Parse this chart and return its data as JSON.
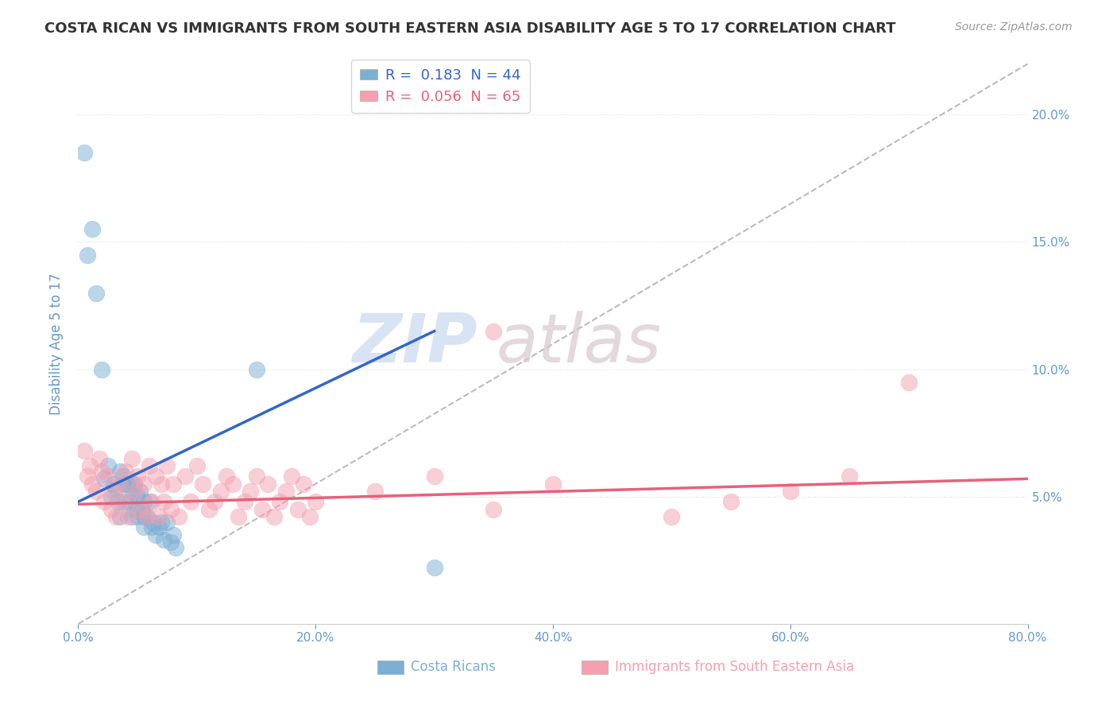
{
  "title": "COSTA RICAN VS IMMIGRANTS FROM SOUTH EASTERN ASIA DISABILITY AGE 5 TO 17 CORRELATION CHART",
  "source": "Source: ZipAtlas.com",
  "xlabel_bottom": [
    "Costa Ricans",
    "Immigrants from South Eastern Asia"
  ],
  "ylabel": "Disability Age 5 to 17",
  "xmin": 0.0,
  "xmax": 0.8,
  "ymin": 0.0,
  "ymax": 0.22,
  "yticks": [
    0.05,
    0.1,
    0.15,
    0.2
  ],
  "ytick_labels": [
    "5.0%",
    "10.0%",
    "15.0%",
    "20.0%"
  ],
  "xticks": [
    0.0,
    0.2,
    0.4,
    0.6,
    0.8
  ],
  "xtick_labels": [
    "0.0%",
    "20.0%",
    "40.0%",
    "60.0%",
    "80.0%"
  ],
  "blue_R": 0.183,
  "blue_N": 44,
  "pink_R": 0.056,
  "pink_N": 65,
  "blue_color": "#7BAFD4",
  "pink_color": "#F4A0B0",
  "blue_line_color": "#3366CC",
  "pink_line_color": "#E8607A",
  "diag_color": "#BBBBBB",
  "watermark": "ZIPatlas",
  "blue_points_x": [
    0.005,
    0.008,
    0.012,
    0.015,
    0.02,
    0.022,
    0.025,
    0.028,
    0.03,
    0.032,
    0.033,
    0.035,
    0.035,
    0.038,
    0.04,
    0.04,
    0.042,
    0.043,
    0.045,
    0.045,
    0.046,
    0.047,
    0.048,
    0.05,
    0.05,
    0.052,
    0.053,
    0.055,
    0.055,
    0.056,
    0.058,
    0.06,
    0.062,
    0.063,
    0.065,
    0.068,
    0.07,
    0.072,
    0.075,
    0.078,
    0.08,
    0.082,
    0.15,
    0.3
  ],
  "blue_points_y": [
    0.185,
    0.145,
    0.155,
    0.13,
    0.1,
    0.057,
    0.062,
    0.05,
    0.055,
    0.053,
    0.048,
    0.06,
    0.042,
    0.058,
    0.055,
    0.048,
    0.055,
    0.048,
    0.055,
    0.042,
    0.052,
    0.055,
    0.045,
    0.05,
    0.042,
    0.052,
    0.045,
    0.038,
    0.048,
    0.042,
    0.042,
    0.048,
    0.038,
    0.04,
    0.035,
    0.038,
    0.04,
    0.033,
    0.04,
    0.032,
    0.035,
    0.03,
    0.1,
    0.022
  ],
  "pink_points_x": [
    0.005,
    0.008,
    0.01,
    0.012,
    0.015,
    0.018,
    0.02,
    0.022,
    0.025,
    0.028,
    0.03,
    0.032,
    0.035,
    0.038,
    0.04,
    0.042,
    0.045,
    0.048,
    0.05,
    0.052,
    0.055,
    0.058,
    0.06,
    0.062,
    0.065,
    0.068,
    0.07,
    0.072,
    0.075,
    0.078,
    0.08,
    0.085,
    0.09,
    0.095,
    0.1,
    0.105,
    0.11,
    0.115,
    0.12,
    0.125,
    0.13,
    0.135,
    0.14,
    0.145,
    0.15,
    0.155,
    0.16,
    0.165,
    0.17,
    0.175,
    0.18,
    0.185,
    0.19,
    0.195,
    0.2,
    0.25,
    0.3,
    0.35,
    0.4,
    0.5,
    0.55,
    0.6,
    0.35,
    0.7,
    0.65
  ],
  "pink_points_y": [
    0.068,
    0.058,
    0.062,
    0.055,
    0.052,
    0.065,
    0.06,
    0.048,
    0.058,
    0.045,
    0.052,
    0.042,
    0.055,
    0.048,
    0.06,
    0.042,
    0.065,
    0.052,
    0.058,
    0.045,
    0.055,
    0.042,
    0.062,
    0.048,
    0.058,
    0.042,
    0.055,
    0.048,
    0.062,
    0.045,
    0.055,
    0.042,
    0.058,
    0.048,
    0.062,
    0.055,
    0.045,
    0.048,
    0.052,
    0.058,
    0.055,
    0.042,
    0.048,
    0.052,
    0.058,
    0.045,
    0.055,
    0.042,
    0.048,
    0.052,
    0.058,
    0.045,
    0.055,
    0.042,
    0.048,
    0.052,
    0.058,
    0.045,
    0.055,
    0.042,
    0.048,
    0.052,
    0.115,
    0.095,
    0.058
  ],
  "blue_line_x": [
    0.0,
    0.3
  ],
  "blue_line_y": [
    0.048,
    0.115
  ],
  "pink_line_x": [
    0.0,
    0.8
  ],
  "pink_line_y": [
    0.047,
    0.057
  ],
  "diag_line_x": [
    0.0,
    0.8
  ],
  "diag_line_y": [
    0.0,
    0.22
  ],
  "grid_color": "#DDDDDD",
  "title_color": "#333333",
  "axis_label_color": "#6699CC",
  "tick_label_color": "#6699CC",
  "background_color": "#FFFFFF"
}
